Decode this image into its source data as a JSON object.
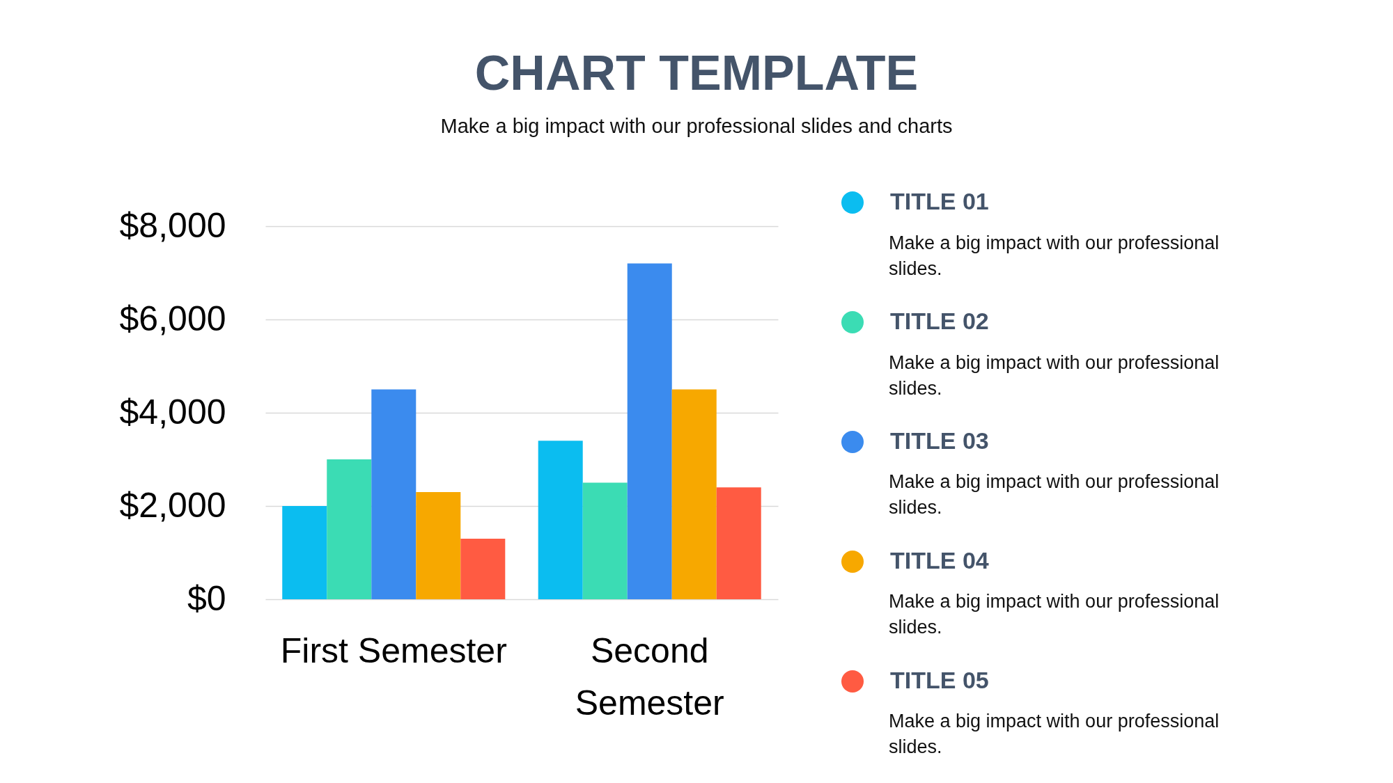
{
  "chart_data": {
    "type": "bar",
    "title": "CHART TEMPLATE",
    "subtitle": "Make a big impact with our professional slides and charts",
    "categories": [
      "First Semester",
      "Second Semester"
    ],
    "series": [
      {
        "name": "TITLE 01",
        "color": "#0bbdf0",
        "values": [
          2000,
          3400
        ]
      },
      {
        "name": "TITLE 02",
        "color": "#3bdcb4",
        "values": [
          3000,
          2500
        ]
      },
      {
        "name": "TITLE 03",
        "color": "#3b8bee",
        "values": [
          4500,
          7200
        ]
      },
      {
        "name": "TITLE 04",
        "color": "#f7a800",
        "values": [
          2300,
          4500
        ]
      },
      {
        "name": "TITLE 05",
        "color": "#ff5b42",
        "values": [
          1300,
          2400
        ]
      }
    ],
    "ylim": [
      0,
      8000
    ],
    "yticks": [
      {
        "value": 0,
        "label": "$0"
      },
      {
        "value": 2000,
        "label": "$2,000"
      },
      {
        "value": 4000,
        "label": "$4,000"
      },
      {
        "value": 6000,
        "label": "$6,000"
      },
      {
        "value": 8000,
        "label": "$8,000"
      }
    ],
    "grid": "y",
    "legend": "right",
    "annotations": [
      "Make a big impact with our professional slides.",
      "Make a big impact with our professional slides.",
      "Make a big impact with our professional slides.",
      "Make a big impact with our professional slides.",
      "Make a big impact with our professional slides."
    ]
  }
}
